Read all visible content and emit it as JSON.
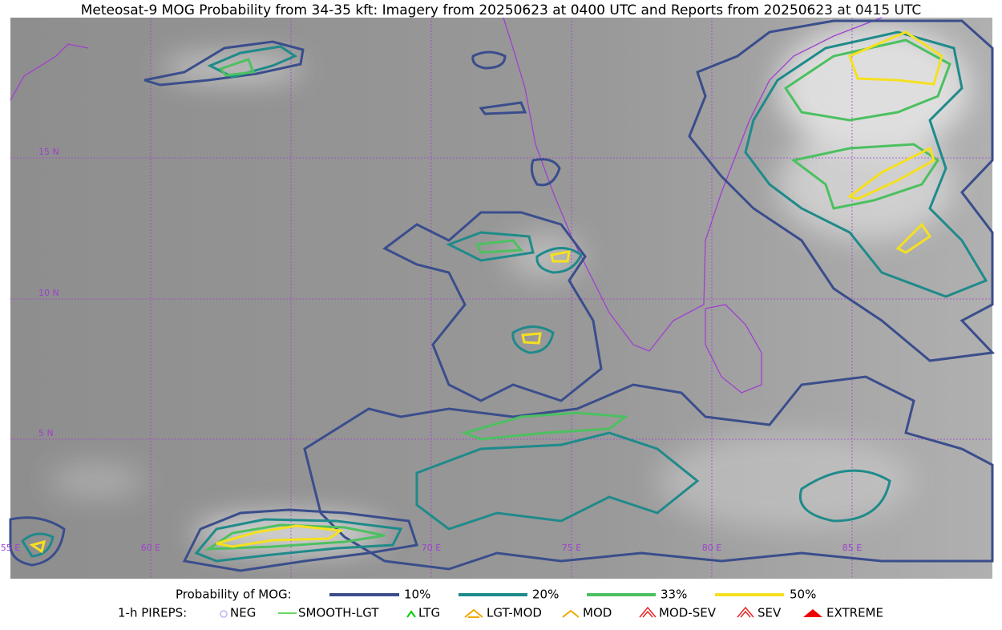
{
  "title": "Meteosat-9 MOG Probability from 34-35 kft: Imagery from 20250623 at 0400 UTC and Reports from 20250623 at 0415 UTC",
  "map": {
    "lat_labels": [
      "15 N",
      "10 N",
      "5 N"
    ],
    "lon_labels": [
      "55 E",
      "60 E",
      "70 E",
      "75 E",
      "80 E",
      "85 E"
    ]
  },
  "legend": {
    "mog": {
      "label": "Probability of MOG:",
      "items": [
        "10%",
        "20%",
        "33%",
        "50%"
      ]
    },
    "pireps": {
      "label": "1-h PIREPS:",
      "items": [
        "NEG",
        "SMOOTH-LGT",
        "LTG",
        "LGT-MOD",
        "MOD",
        "MOD-SEV",
        "SEV",
        "EXTREME"
      ]
    }
  }
}
